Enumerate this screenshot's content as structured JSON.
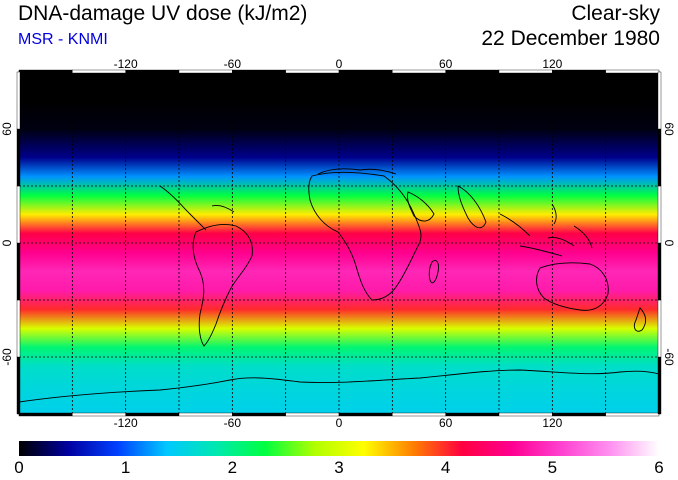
{
  "header": {
    "title": "DNA-damage UV dose (kJ/m2)",
    "subtitle": "MSR - KNMI",
    "mode": "Clear-sky",
    "date": "22 December 1980"
  },
  "map": {
    "lon_ticks": [
      "-120",
      "-60",
      "0",
      "60",
      "120"
    ],
    "lat_ticks": [
      "60",
      "0",
      "-60"
    ],
    "lon_values": [
      -120,
      -60,
      0,
      60,
      120
    ],
    "lat_values": [
      60,
      0,
      -60
    ],
    "grid_lon": [
      -150,
      -120,
      -90,
      -60,
      -30,
      0,
      30,
      60,
      90,
      120,
      150
    ],
    "grid_lat": [
      -60,
      -30,
      0,
      30,
      60
    ]
  },
  "colorbar": {
    "ticks": [
      "0",
      "1",
      "2",
      "3",
      "4",
      "5",
      "6"
    ],
    "min": 0,
    "max": 6,
    "colors": [
      "#000000",
      "#0000a0",
      "#0040ff",
      "#00c8ff",
      "#00e8b0",
      "#00ff40",
      "#b0ff00",
      "#ffff00",
      "#ff8000",
      "#ff0040",
      "#ff0090",
      "#ff40d0",
      "#ff90f0",
      "#ffffff"
    ]
  },
  "chart_data": {
    "type": "heatmap",
    "title": "DNA-damage UV dose (kJ/m2)",
    "xlabel": "",
    "ylabel": "",
    "xlim": [
      -180,
      180
    ],
    "ylim": [
      -90,
      90
    ],
    "lat_profile": [
      {
        "lat": 90,
        "dose": 0.0
      },
      {
        "lat": 75,
        "dose": 0.0
      },
      {
        "lat": 60,
        "dose": 0.05
      },
      {
        "lat": 45,
        "dose": 0.4
      },
      {
        "lat": 35,
        "dose": 1.2
      },
      {
        "lat": 25,
        "dose": 2.3
      },
      {
        "lat": 15,
        "dose": 3.3
      },
      {
        "lat": 5,
        "dose": 4.2
      },
      {
        "lat": -5,
        "dose": 4.6
      },
      {
        "lat": -15,
        "dose": 4.9
      },
      {
        "lat": -25,
        "dose": 4.8
      },
      {
        "lat": -35,
        "dose": 4.0
      },
      {
        "lat": -45,
        "dose": 3.0
      },
      {
        "lat": -55,
        "dose": 2.1
      },
      {
        "lat": -65,
        "dose": 1.7
      },
      {
        "lat": -75,
        "dose": 1.6
      },
      {
        "lat": -90,
        "dose": 1.5
      }
    ],
    "colorbar_range": [
      0,
      6
    ]
  }
}
